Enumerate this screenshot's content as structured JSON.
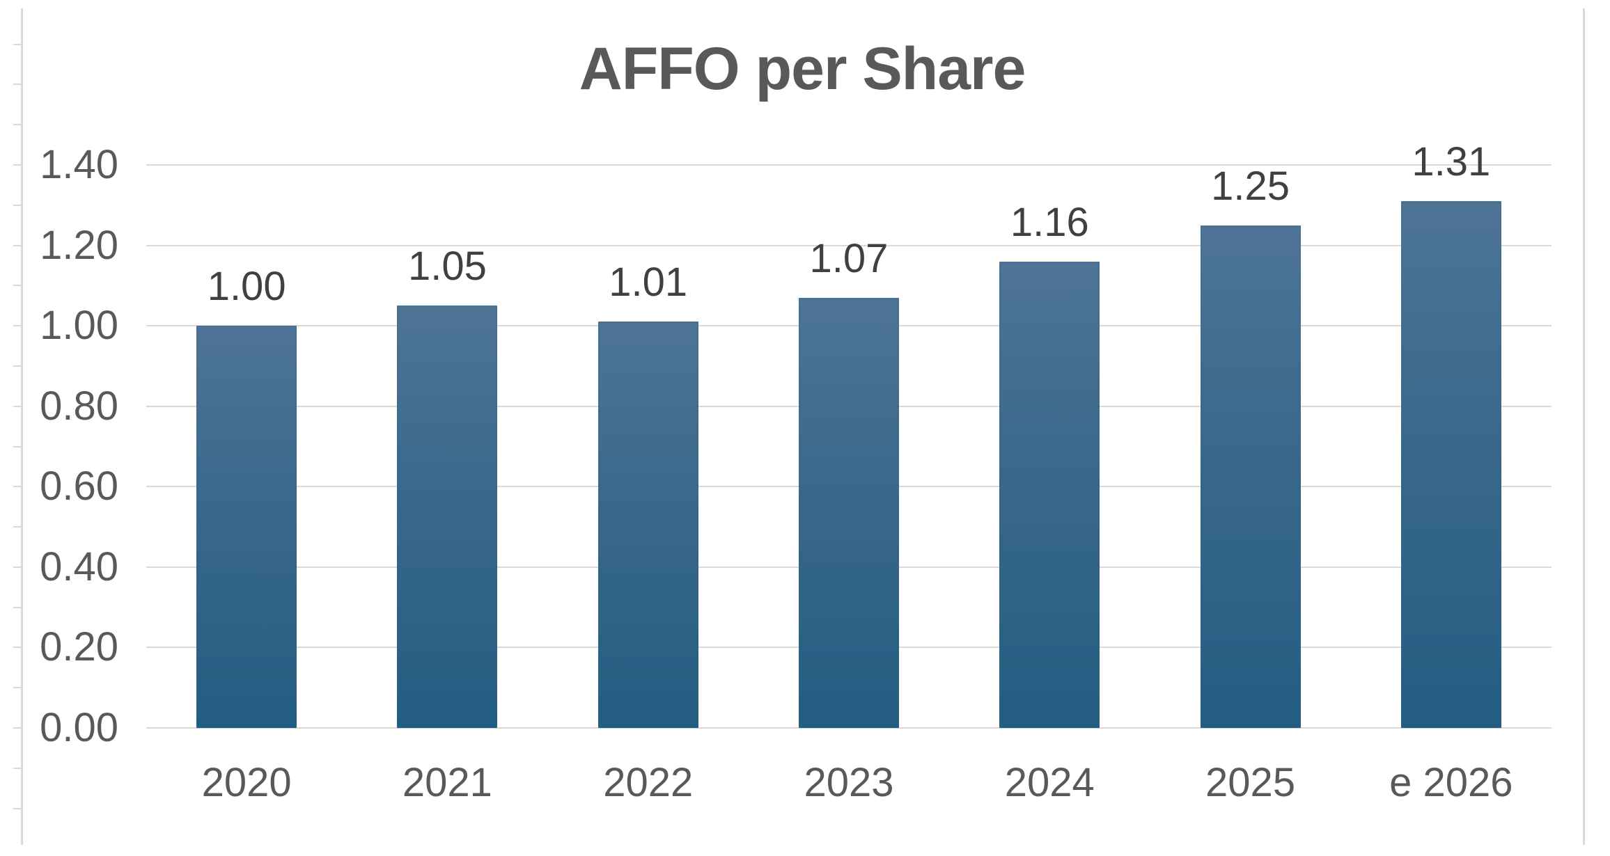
{
  "chart_data": {
    "type": "bar",
    "title": "AFFO per Share",
    "categories": [
      "2020",
      "2021",
      "2022",
      "2023",
      "2024",
      "2025",
      "e 2026"
    ],
    "values": [
      1.0,
      1.05,
      1.01,
      1.07,
      1.16,
      1.25,
      1.31
    ],
    "value_labels": [
      "1.00",
      "1.05",
      "1.01",
      "1.07",
      "1.16",
      "1.25",
      "1.31"
    ],
    "xlabel": "",
    "ylabel": "",
    "ylim": [
      0.0,
      1.4
    ],
    "y_major_step": 0.2,
    "y_minor_step": 0.1,
    "y_tick_labels": [
      "1.40",
      "1.20",
      "1.00",
      "0.80",
      "0.60",
      "0.40",
      "0.20",
      "0.00"
    ],
    "y_tick_values": [
      1.4,
      1.2,
      1.0,
      0.8,
      0.6,
      0.4,
      0.2,
      0.0
    ],
    "grid": true,
    "legend_position": "none",
    "colors": {
      "bar_gradient_top": "#4e7495",
      "bar_gradient_mid": "#3a688b",
      "bar_gradient_bottom": "#235d82",
      "bar_border": "#2f6287",
      "gridline": "#d9d9d9",
      "chart_border": "#d9d9d9",
      "axis_text": "#595959",
      "data_label_text": "#404040",
      "title_text": "#595959",
      "background": "#ffffff"
    }
  }
}
